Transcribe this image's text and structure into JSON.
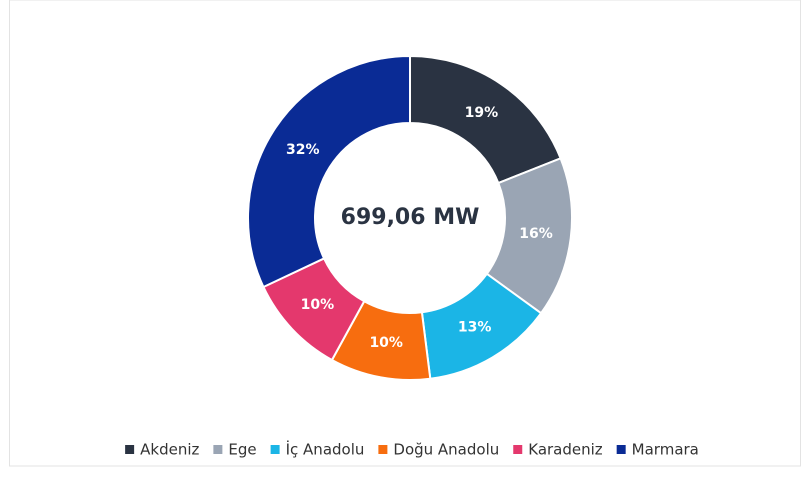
{
  "chart_data": {
    "type": "donut",
    "center_label": "699,06 MW",
    "categories": [
      "Akdeniz",
      "Ege",
      "İç Anadolu",
      "Doğu Anadolu",
      "Karadeniz",
      "Marmara"
    ],
    "values": [
      19,
      16,
      13,
      10,
      10,
      32
    ],
    "value_labels": [
      "19%",
      "16%",
      "13%",
      "10%",
      "10%",
      "32%"
    ],
    "colors": [
      "#2a3342",
      "#9aa5b4",
      "#1bb5e6",
      "#f76d0f",
      "#e4386d",
      "#0a2b95"
    ],
    "legend": "bottom"
  }
}
